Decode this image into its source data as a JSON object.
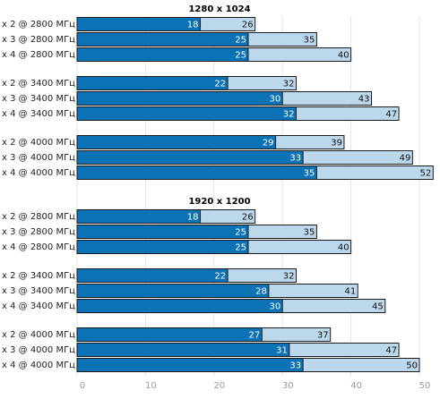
{
  "chart_data": [
    {
      "type": "bar",
      "title": "1280 x 1024",
      "categories": [
        "x 2 @ 2800 МГц",
        "x 3 @ 2800 МГц",
        "x 4 @ 2800 МГц",
        "x 2 @ 3400 МГц",
        "x 3 @ 3400 МГц",
        "x 4 @ 3400 МГц",
        "x 2 @ 4000 МГц",
        "x 3 @ 4000 МГц",
        "x 4 @ 4000 МГц"
      ],
      "series": [
        {
          "color": "#bcd8ec",
          "values": [
            26,
            35,
            40,
            32,
            43,
            47,
            39,
            49,
            52
          ]
        },
        {
          "color": "#0c72b6",
          "values": [
            18,
            25,
            25,
            22,
            30,
            32,
            29,
            33,
            35
          ]
        }
      ],
      "xlim": [
        0,
        50
      ]
    },
    {
      "type": "bar",
      "title": "1920 x 1200",
      "categories": [
        "x 2 @ 2800 МГц",
        "x 3 @ 2800 МГц",
        "x 4 @ 2800 МГц",
        "x 2 @ 3400 МГц",
        "x 3 @ 3400 МГц",
        "x 4 @ 3400 МГц",
        "x 2 @ 4000 МГц",
        "x 3 @ 4000 МГц",
        "x 4 @ 4000 МГц"
      ],
      "series": [
        {
          "color": "#bcd8ec",
          "values": [
            26,
            35,
            40,
            32,
            41,
            45,
            37,
            47,
            50
          ]
        },
        {
          "color": "#0c72b6",
          "values": [
            18,
            25,
            25,
            22,
            28,
            30,
            27,
            31,
            33
          ]
        }
      ],
      "xlim": [
        0,
        50
      ],
      "xticks": [
        0,
        10,
        20,
        30,
        40,
        50
      ],
      "grid": true
    }
  ]
}
